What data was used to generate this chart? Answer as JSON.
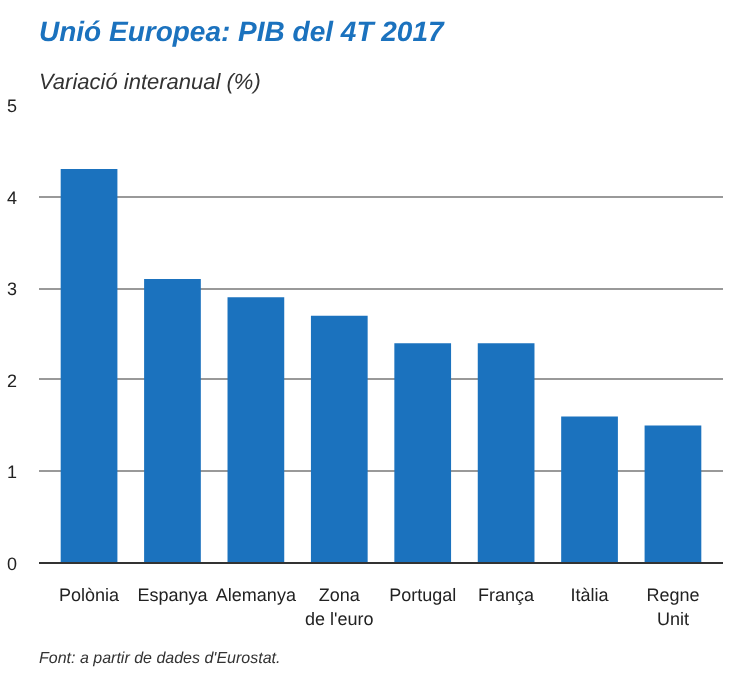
{
  "chart_data": {
    "type": "bar",
    "title": "Unió Europea: PIB del 4T 2017",
    "subtitle": "Variació interanual (%)",
    "categories": [
      "Polònia",
      "Espanya",
      "Alemanya",
      "Zona\nde l'euro",
      "Portugal",
      "França",
      "Itàlia",
      "Regne\nUnit"
    ],
    "values": [
      4.3,
      3.1,
      2.9,
      2.7,
      2.4,
      2.4,
      1.6,
      1.5
    ],
    "color": "#1b72be",
    "ylim": [
      0,
      5
    ],
    "yticks": [
      0,
      1,
      2,
      3,
      4,
      5
    ],
    "grid": "y",
    "annotations": [
      "Font: a partir de dades d'Eurostat."
    ]
  }
}
